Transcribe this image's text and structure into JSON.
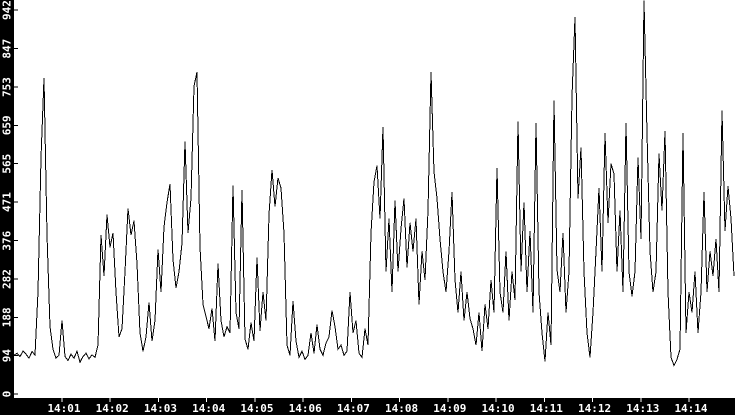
{
  "chart_data": {
    "type": "line",
    "title": "",
    "xlabel": "",
    "ylabel": "",
    "x_ticks": [
      "14:01",
      "14:02",
      "14:03",
      "14:04",
      "14:05",
      "14:06",
      "14:07",
      "14:08",
      "14:09",
      "14:10",
      "14:11",
      "14:12",
      "14:13",
      "14:14"
    ],
    "y_ticks": [
      0,
      94,
      188,
      282,
      376,
      471,
      565,
      659,
      753,
      847,
      942
    ],
    "x_range": [
      "14:00",
      "14:15"
    ],
    "ylim": [
      0,
      942
    ],
    "grid": false,
    "legend_position": "none",
    "plot_bg_color": "#ffffff",
    "axis_strip_color": "#000000",
    "axis_text_color": "#ffffff",
    "line_color": "#000000",
    "note": "single noisy time-series; tallest spike near 14:13 is clipped at top of plot",
    "series": [
      {
        "name": "value",
        "values": [
          95,
          100,
          92,
          105,
          98,
          88,
          104,
          96,
          250,
          580,
          775,
          390,
          165,
          110,
          88,
          95,
          180,
          92,
          82,
          98,
          88,
          105,
          78,
          92,
          100,
          86,
          96,
          90,
          120,
          390,
          290,
          440,
          360,
          395,
          250,
          140,
          160,
          300,
          455,
          390,
          425,
          320,
          150,
          105,
          140,
          225,
          130,
          180,
          355,
          250,
          410,
          470,
          515,
          330,
          260,
          300,
          370,
          620,
          395,
          480,
          755,
          790,
          360,
          220,
          190,
          160,
          210,
          130,
          320,
          180,
          140,
          165,
          150,
          512,
          200,
          160,
          500,
          135,
          110,
          175,
          130,
          335,
          155,
          250,
          180,
          440,
          550,
          460,
          530,
          505,
          395,
          120,
          95,
          228,
          130,
          90,
          105,
          85,
          95,
          150,
          100,
          170,
          110,
          95,
          125,
          140,
          205,
          165,
          110,
          120,
          95,
          105,
          250,
          150,
          180,
          100,
          90,
          160,
          120,
          395,
          520,
          560,
          430,
          655,
          300,
          430,
          250,
          475,
          300,
          405,
          480,
          310,
          420,
          350,
          430,
          220,
          350,
          280,
          450,
          790,
          545,
          480,
          380,
          300,
          250,
          350,
          495,
          280,
          200,
          300,
          180,
          250,
          185,
          160,
          120,
          200,
          105,
          220,
          160,
          280,
          200,
          555,
          250,
          200,
          350,
          180,
          300,
          230,
          668,
          300,
          470,
          250,
          400,
          200,
          665,
          250,
          150,
          80,
          200,
          120,
          720,
          305,
          250,
          395,
          200,
          300,
          730,
          925,
          480,
          605,
          300,
          150,
          90,
          200,
          350,
          505,
          300,
          640,
          420,
          565,
          540,
          300,
          450,
          250,
          665,
          300,
          240,
          300,
          580,
          380,
          965,
          640,
          350,
          250,
          300,
          590,
          450,
          645,
          250,
          90,
          70,
          85,
          110,
          640,
          150,
          250,
          200,
          300,
          150,
          250,
          495,
          250,
          350,
          290,
          380,
          250,
          695,
          400,
          510,
          430,
          290
        ]
      }
    ]
  }
}
